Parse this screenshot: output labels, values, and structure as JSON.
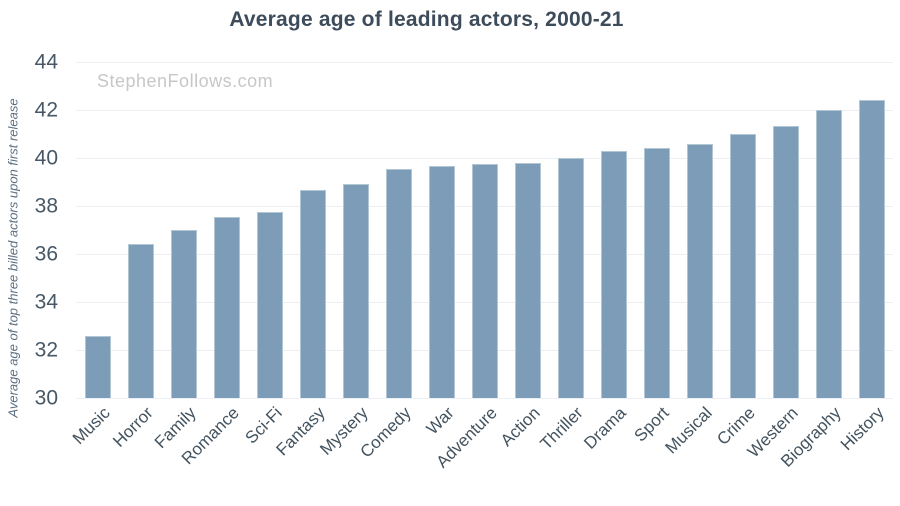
{
  "title": "Average age of leading actors, 2000-21",
  "watermark": "StephenFollows.com",
  "colors": {
    "bar_fill": "#7d9cb8",
    "bar_edge": "#b3c6d4",
    "title_text": "#3d4c5b",
    "tick_text": "#475766",
    "axis_title_text": "#5c7082",
    "gridline": "#ecf0f4",
    "watermark_text": "#c7c7c7",
    "background": "#ffffff"
  },
  "chart_data": {
    "type": "bar",
    "title": "Average age of leading actors, 2000-21",
    "xlabel": "",
    "ylabel": "Average age of top three billed actors upon first release",
    "ylim": [
      30,
      44
    ],
    "ytick_step": 2,
    "yticks": [
      44,
      42,
      40,
      38,
      36,
      34,
      32,
      30
    ],
    "grid": true,
    "legend": "none",
    "categories": [
      "Music",
      "Horror",
      "Family",
      "Romance",
      "Sci-Fi",
      "Fantasy",
      "Mystery",
      "Comedy",
      "War",
      "Adventure",
      "Action",
      "Thriller",
      "Drama",
      "Sport",
      "Musical",
      "Crime",
      "Western",
      "Biography",
      "History"
    ],
    "values": [
      32.6,
      36.4,
      37.0,
      37.55,
      37.75,
      38.65,
      38.9,
      39.55,
      39.65,
      39.75,
      39.8,
      40.0,
      40.3,
      40.4,
      40.6,
      41.0,
      41.35,
      42.0,
      42.4
    ]
  }
}
